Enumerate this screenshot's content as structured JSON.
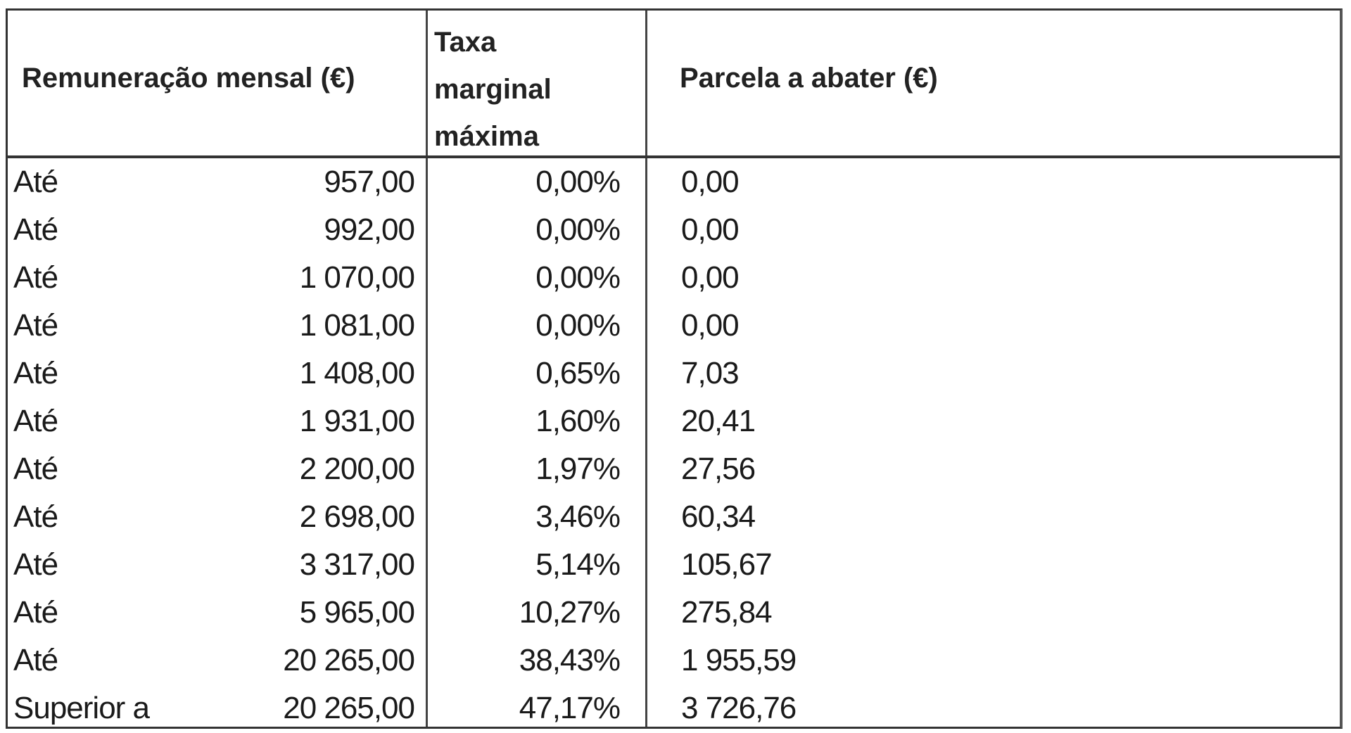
{
  "headers": {
    "remuneracao": "Remuneração mensal (€)",
    "taxa_lines": [
      "Taxa",
      "marginal",
      "máxima"
    ],
    "parcela": "Parcela a abater (€)"
  },
  "rows": [
    {
      "label": "Até",
      "amount": "957,00",
      "rate": "0,00%",
      "deduction": "0,00"
    },
    {
      "label": "Até",
      "amount": "992,00",
      "rate": "0,00%",
      "deduction": "0,00"
    },
    {
      "label": "Até",
      "amount": "1 070,00",
      "rate": "0,00%",
      "deduction": "0,00"
    },
    {
      "label": "Até",
      "amount": "1 081,00",
      "rate": "0,00%",
      "deduction": "0,00"
    },
    {
      "label": "Até",
      "amount": "1 408,00",
      "rate": "0,65%",
      "deduction": "7,03"
    },
    {
      "label": "Até",
      "amount": "1 931,00",
      "rate": "1,60%",
      "deduction": "20,41"
    },
    {
      "label": "Até",
      "amount": "2 200,00",
      "rate": "1,97%",
      "deduction": "27,56"
    },
    {
      "label": "Até",
      "amount": "2 698,00",
      "rate": "3,46%",
      "deduction": "60,34"
    },
    {
      "label": "Até",
      "amount": "3 317,00",
      "rate": "5,14%",
      "deduction": "105,67"
    },
    {
      "label": "Até",
      "amount": "5 965,00",
      "rate": "10,27%",
      "deduction": "275,84"
    },
    {
      "label": "Até",
      "amount": "20 265,00",
      "rate": "38,43%",
      "deduction": "1 955,59"
    },
    {
      "label": "Superior a",
      "amount": "20 265,00",
      "rate": "47,17%",
      "deduction": "3 726,76"
    }
  ]
}
